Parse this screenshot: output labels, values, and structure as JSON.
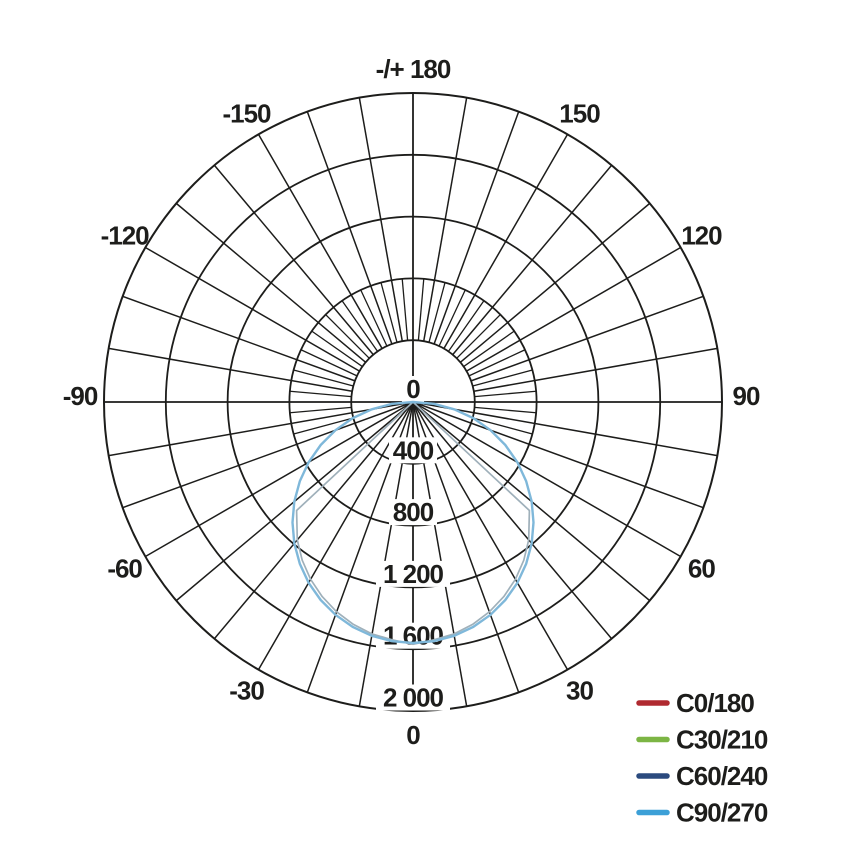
{
  "chart_data": {
    "type": "polar-photometric",
    "center_label": "0",
    "radial_axis": {
      "values": [
        400,
        800,
        1200,
        1600,
        2000
      ],
      "tick_labels": [
        "400",
        "800",
        "1 200",
        "1 600",
        "2 000"
      ],
      "max": 2000,
      "rings": 5
    },
    "angle_labels": [
      {
        "text": "-/+ 180",
        "angle": 0
      },
      {
        "text": "150",
        "angle": 30
      },
      {
        "text": "120",
        "angle": 60
      },
      {
        "text": "90",
        "angle": 90
      },
      {
        "text": "60",
        "angle": 120
      },
      {
        "text": "30",
        "angle": 150
      },
      {
        "text": "0",
        "angle": 180
      },
      {
        "text": "-30",
        "angle": 210
      },
      {
        "text": "-60",
        "angle": 240
      },
      {
        "text": "-90",
        "angle": 270
      },
      {
        "text": "-120",
        "angle": 300
      },
      {
        "text": "-150",
        "angle": 330
      }
    ],
    "grid": {
      "coarse_step_deg": 10,
      "fine_step_deg": 5,
      "fine_annulus_rings": [
        1,
        2
      ],
      "color": "#1d1d1b"
    },
    "series": [
      {
        "name": "C0/180",
        "legend_color": "#b02a30",
        "draw_color": "#b02a30",
        "width": 1.6,
        "model": "cosine",
        "peak_cd": 1560
      },
      {
        "name": "C30/210",
        "legend_color": "#7cb544",
        "draw_color": "#7cb544",
        "width": 1.6,
        "model": "cosine",
        "peak_cd": 1560
      },
      {
        "name": "C60/240",
        "legend_color": "#2b4a7e",
        "draw_color": "#9fb0ba",
        "width": 1.7,
        "model": "table",
        "points": [
          [
            -90,
            0
          ],
          [
            -47,
            1030
          ],
          [
            -40,
            1165
          ],
          [
            -35,
            1250
          ],
          [
            -30,
            1325
          ],
          [
            -25,
            1390
          ],
          [
            -20,
            1445
          ],
          [
            -15,
            1490
          ],
          [
            -10,
            1525
          ],
          [
            -5,
            1545
          ],
          [
            0,
            1568
          ],
          [
            5,
            1545
          ],
          [
            10,
            1525
          ],
          [
            15,
            1490
          ],
          [
            20,
            1445
          ],
          [
            25,
            1390
          ],
          [
            30,
            1325
          ],
          [
            35,
            1250
          ],
          [
            40,
            1165
          ],
          [
            47,
            1030
          ],
          [
            90,
            0
          ]
        ],
        "peak_cd": 1568
      },
      {
        "name": "C90/270",
        "legend_color": "#3ca0d7",
        "draw_color": "#7fb8da",
        "width": 2.4,
        "model": "cosine",
        "peak_cd": 1560
      }
    ]
  },
  "legend": {
    "items": [
      {
        "label": "C0/180",
        "color": "#b02a30"
      },
      {
        "label": "C30/210",
        "color": "#7cb544"
      },
      {
        "label": "C60/240",
        "color": "#2b4a7e"
      },
      {
        "label": "C90/270",
        "color": "#3ca0d7"
      }
    ]
  }
}
